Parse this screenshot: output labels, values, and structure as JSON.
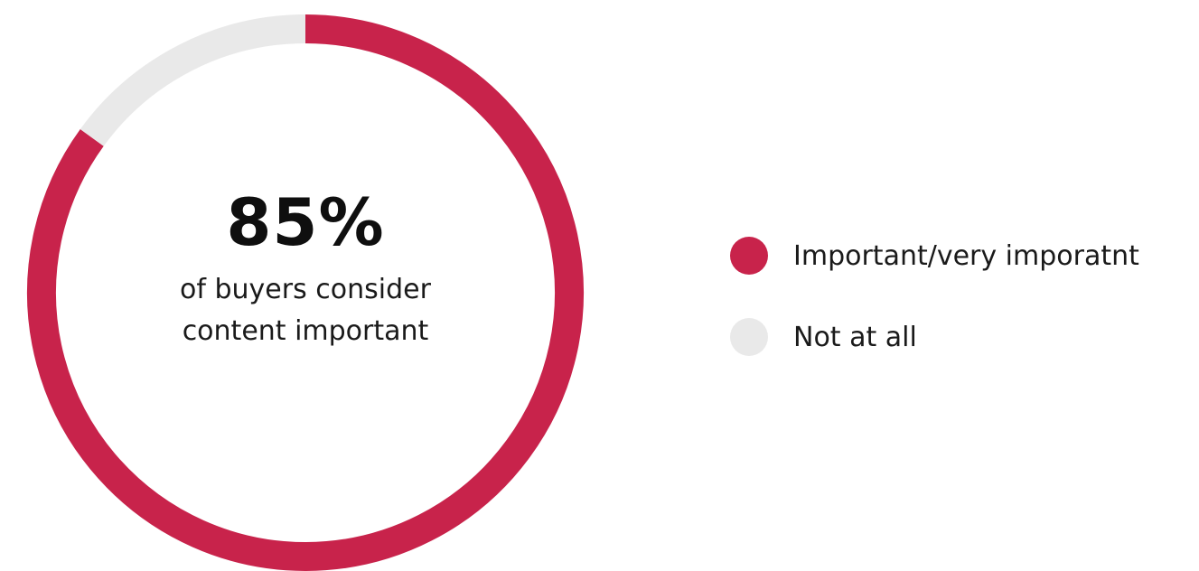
{
  "chart_data": {
    "type": "pie",
    "variant": "donut",
    "categories": [
      "Important/very imporatnt",
      "Not at all"
    ],
    "values": [
      85,
      15
    ],
    "colors": [
      "#c8234b",
      "#e9e9e9"
    ],
    "center_value": "85%",
    "center_caption": [
      "of buyers consider",
      "content important"
    ],
    "legend_placement": "right"
  }
}
